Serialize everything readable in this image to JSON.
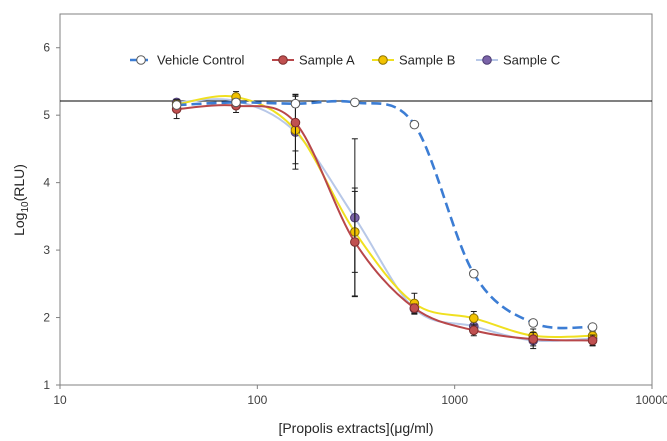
{
  "chart_data": {
    "type": "line",
    "xlabel": "[Propolis extracts](μg/ml)",
    "ylabel_main": "Log",
    "ylabel_sub": "10",
    "ylabel_tail": "(RLU)",
    "x_scale": "log",
    "xlim": [
      10,
      10000
    ],
    "ylim": [
      1,
      6.5
    ],
    "x_ticks": [
      10,
      100,
      1000,
      10000
    ],
    "x_tick_labels": [
      "10",
      "100",
      "1000",
      "10000"
    ],
    "y_ticks": [
      1,
      2,
      3,
      4,
      5,
      6
    ],
    "y_tick_labels": [
      "1",
      "2",
      "3",
      "4",
      "5",
      "6"
    ],
    "reference_line_y": 5.21,
    "grid": false,
    "legend_position": "top",
    "x": [
      39,
      78,
      156,
      312,
      625,
      1250,
      2500,
      5000
    ],
    "series": [
      {
        "name": "Vehicle Control",
        "color": "#3c7dd4",
        "marker_fill": "#ffffff",
        "marker_edge": "#595959",
        "line_style": "dashed",
        "values": [
          5.15,
          5.19,
          5.17,
          5.19,
          4.86,
          2.65,
          1.92,
          1.86
        ],
        "errors": [
          0.03,
          0.03,
          0.05,
          0.02,
          0.03,
          0.03,
          0.04,
          0.03
        ]
      },
      {
        "name": "Sample A",
        "color": "#b8474a",
        "marker_fill": "#c05050",
        "marker_edge": "#7a2c2c",
        "line_style": "solid",
        "values": [
          5.09,
          5.14,
          4.89,
          3.12,
          2.14,
          1.81,
          1.68,
          1.66
        ],
        "errors": [
          0.14,
          0.1,
          0.42,
          0.8,
          0.06,
          0.08,
          0.1,
          0.08
        ]
      },
      {
        "name": "Sample B",
        "color": "#f0e020",
        "marker_fill": "#f2c200",
        "marker_edge": "#8a7000",
        "line_style": "solid",
        "values": [
          5.16,
          5.27,
          4.78,
          3.27,
          2.21,
          1.99,
          1.73,
          1.73
        ],
        "errors": [
          0.06,
          0.08,
          0.5,
          0.6,
          0.15,
          0.1,
          0.1,
          0.08
        ]
      },
      {
        "name": "Sample C",
        "color": "#b8c8e8",
        "marker_fill": "#7a63a8",
        "marker_edge": "#4a3a70",
        "line_style": "solid",
        "values": [
          5.19,
          5.21,
          4.75,
          3.48,
          2.13,
          1.87,
          1.66,
          1.69
        ],
        "errors": [
          0.05,
          0.1,
          0.55,
          1.17,
          0.08,
          0.1,
          0.12,
          0.1
        ]
      }
    ]
  }
}
